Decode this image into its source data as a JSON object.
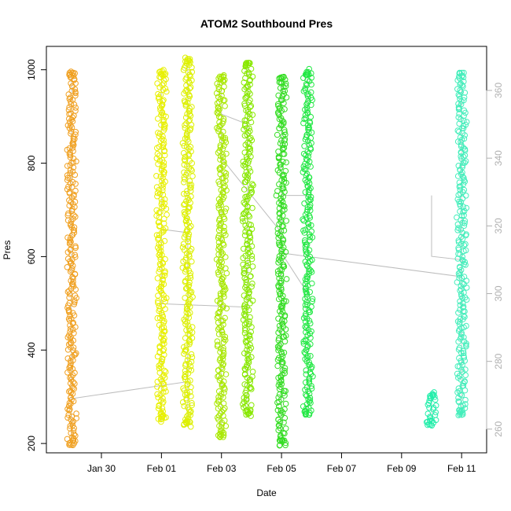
{
  "chart_data": {
    "type": "scatter",
    "title": "ATOM2 Southbound Pres",
    "xlabel": "Date",
    "ylabel": "Pres",
    "x_axis": {
      "type": "date",
      "range": [
        "2021-01-28T04:00",
        "2021-02-11T20:00"
      ],
      "ticks": [
        "2021-01-30",
        "2021-02-01",
        "2021-02-03",
        "2021-02-05",
        "2021-02-07",
        "2021-02-09",
        "2021-02-11"
      ],
      "tick_labels": [
        "Jan 30",
        "Feb 01",
        "Feb 03",
        "Feb 05",
        "Feb 07",
        "Feb 09",
        "Feb 11"
      ]
    },
    "y_axis": {
      "range": [
        180,
        1050
      ],
      "ticks": [
        200,
        400,
        600,
        800,
        1000
      ],
      "tick_labels": [
        "200",
        "400",
        "600",
        "800",
        "1000"
      ]
    },
    "y_axis_right": {
      "color": "#b0b0b0",
      "range": [
        253,
        373
      ],
      "ticks": [
        260,
        280,
        300,
        320,
        340,
        360
      ],
      "tick_labels": [
        "260",
        "280",
        "300",
        "320",
        "340",
        "360"
      ]
    },
    "grid": false,
    "legend": "none",
    "marker": "open-circle",
    "point_color_scale": [
      "#ff8c00",
      "#ffff00",
      "#00ff00",
      "#00ffcc"
    ],
    "profiles": [
      {
        "date": "2021-01-29T00:00",
        "pres_range": [
          195,
          995
        ],
        "color": "#f0a020"
      },
      {
        "date": "2021-02-01T00:00",
        "pres_range": [
          248,
          998
        ],
        "color": "#e8f000"
      },
      {
        "date": "2021-02-01T21:00",
        "pres_range": [
          235,
          1025
        ],
        "color": "#ddf000"
      },
      {
        "date": "2021-02-03T00:00",
        "pres_range": [
          213,
          988
        ],
        "color": "#a8e800"
      },
      {
        "date": "2021-02-03T21:00",
        "pres_range": [
          260,
          1015
        ],
        "color": "#88e800"
      },
      {
        "date": "2021-02-05T00:00",
        "pres_range": [
          195,
          985
        ],
        "color": "#33dd22"
      },
      {
        "date": "2021-02-05T21:00",
        "pres_range": [
          260,
          1000
        ],
        "color": "#22e844"
      },
      {
        "date": "2021-02-10T00:00",
        "pres_range": [
          238,
          308
        ],
        "color": "#22eeaa"
      },
      {
        "date": "2021-02-11T00:00",
        "pres_range": [
          260,
          995
        ],
        "color": "#44eebb"
      }
    ],
    "right_axis_trace": {
      "color": "#bdbdbd",
      "x": [
        "2021-01-29T00:00",
        "2021-02-01T21:00",
        "2021-02-01T21:00",
        "2021-02-01T00:00",
        "2021-02-01T00:00",
        "2021-02-03T21:00",
        "2021-02-03T21:00",
        "2021-02-03T00:00",
        "2021-02-03T00:00",
        "2021-02-05T00:00",
        "2021-02-05T00:00",
        "2021-02-05T21:00",
        "2021-02-05T21:00",
        "2021-02-05T00:00",
        "2021-02-05T00:00",
        "2021-02-11T00:00",
        "2021-02-11T00:00",
        "2021-02-10T00:00",
        "2021-02-10T00:00"
      ],
      "y": [
        269,
        274,
        318,
        319,
        297,
        296,
        350,
        353,
        340,
        318,
        312,
        300,
        329,
        329,
        312,
        305,
        310,
        311,
        329
      ]
    }
  }
}
